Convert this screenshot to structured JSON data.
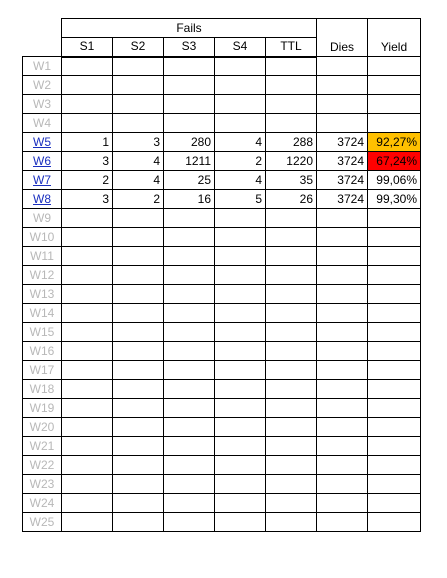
{
  "table": {
    "fails_title": "Fails",
    "columns": [
      "S1",
      "S2",
      "S3",
      "S4",
      "TTL"
    ],
    "dies_label": "Dies",
    "yield_label": "Yield",
    "colors": {
      "yield_warn": "#ffc000",
      "yield_bad": "#ff0000",
      "link": "#1a2fbf",
      "inactive": "#b8b8b8"
    },
    "rows": [
      {
        "label": "W1"
      },
      {
        "label": "W2"
      },
      {
        "label": "W3"
      },
      {
        "label": "W4"
      },
      {
        "label": "W5",
        "active": true,
        "s1": "1",
        "s2": "3",
        "s3": "280",
        "s4": "4",
        "ttl": "288",
        "dies": "3724",
        "yield": "92,27%",
        "status": "warn"
      },
      {
        "label": "W6",
        "active": true,
        "s1": "3",
        "s2": "4",
        "s3": "1211",
        "s4": "2",
        "ttl": "1220",
        "dies": "3724",
        "yield": "67,24%",
        "status": "bad"
      },
      {
        "label": "W7",
        "active": true,
        "s1": "2",
        "s2": "4",
        "s3": "25",
        "s4": "4",
        "ttl": "35",
        "dies": "3724",
        "yield": "99,06%",
        "status": "ok"
      },
      {
        "label": "W8",
        "active": true,
        "s1": "3",
        "s2": "2",
        "s3": "16",
        "s4": "5",
        "ttl": "26",
        "dies": "3724",
        "yield": "99,30%",
        "status": "ok"
      },
      {
        "label": "W9"
      },
      {
        "label": "W10"
      },
      {
        "label": "W11"
      },
      {
        "label": "W12"
      },
      {
        "label": "W13"
      },
      {
        "label": "W14"
      },
      {
        "label": "W15"
      },
      {
        "label": "W16"
      },
      {
        "label": "W17"
      },
      {
        "label": "W18"
      },
      {
        "label": "W19"
      },
      {
        "label": "W20"
      },
      {
        "label": "W21"
      },
      {
        "label": "W22"
      },
      {
        "label": "W23"
      },
      {
        "label": "W24"
      },
      {
        "label": "W25"
      }
    ]
  }
}
